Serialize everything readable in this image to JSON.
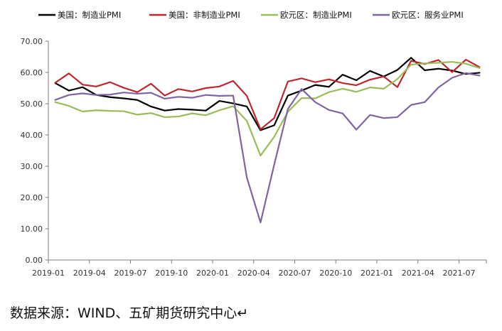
{
  "source_note": "数据来源：WIND、五矿期货研究中心↵",
  "chart_data": {
    "type": "line",
    "title": "",
    "xlabel": "",
    "ylabel": "",
    "ylim": [
      0,
      70
    ],
    "y_ticks": [
      "0.00",
      "10.00",
      "20.00",
      "30.00",
      "40.00",
      "50.00",
      "60.00",
      "70.00"
    ],
    "x_tick_labels": [
      "2019-01",
      "2019-04",
      "2019-07",
      "2019-10",
      "2020-01",
      "2020-04",
      "2020-07",
      "2020-10",
      "2021-01",
      "2021-04",
      "2021-07"
    ],
    "x": [
      "2019-01",
      "2019-02",
      "2019-03",
      "2019-04",
      "2019-05",
      "2019-06",
      "2019-07",
      "2019-08",
      "2019-09",
      "2019-10",
      "2019-11",
      "2019-12",
      "2020-01",
      "2020-02",
      "2020-03",
      "2020-04",
      "2020-05",
      "2020-06",
      "2020-07",
      "2020-08",
      "2020-09",
      "2020-10",
      "2020-11",
      "2020-12",
      "2021-01",
      "2021-02",
      "2021-03",
      "2021-04",
      "2021-05",
      "2021-06",
      "2021-07",
      "2021-08"
    ],
    "grid": false,
    "legend_position": "top",
    "series": [
      {
        "name": "美国：制造业PMI",
        "color": "#000000",
        "values": [
          56.6,
          54.2,
          55.3,
          52.8,
          52.1,
          51.7,
          51.2,
          49.1,
          47.8,
          48.3,
          48.1,
          47.8,
          50.9,
          50.1,
          49.1,
          41.5,
          43.1,
          52.6,
          54.2,
          56.0,
          55.4,
          59.3,
          57.5,
          60.5,
          58.7,
          60.8,
          64.7,
          60.7,
          61.2,
          60.6,
          59.5,
          59.9
        ]
      },
      {
        "name": "美国：非制造业PMI",
        "color": "#c0272d",
        "values": [
          56.7,
          59.7,
          56.1,
          55.5,
          56.9,
          55.1,
          53.7,
          56.4,
          52.6,
          54.7,
          53.9,
          55.0,
          55.5,
          57.3,
          52.5,
          41.8,
          45.4,
          57.1,
          58.1,
          56.9,
          57.8,
          56.6,
          55.9,
          57.7,
          58.7,
          55.3,
          63.7,
          62.7,
          64.0,
          60.1,
          64.1,
          61.7
        ]
      },
      {
        "name": "欧元区：制造业PMI",
        "color": "#9bbb59",
        "values": [
          50.5,
          49.3,
          47.5,
          47.9,
          47.7,
          47.6,
          46.5,
          47.0,
          45.7,
          45.9,
          46.9,
          46.3,
          47.9,
          49.2,
          44.5,
          33.4,
          39.4,
          47.4,
          51.8,
          51.7,
          53.7,
          54.8,
          53.8,
          55.2,
          54.8,
          57.9,
          62.5,
          62.9,
          63.1,
          63.4,
          62.8,
          61.4
        ]
      },
      {
        "name": "欧元区：服务业PMI",
        "color": "#8064a2",
        "values": [
          51.2,
          52.8,
          53.3,
          52.8,
          52.9,
          53.6,
          53.2,
          53.5,
          51.6,
          52.2,
          51.9,
          52.8,
          52.5,
          52.6,
          26.4,
          12.0,
          30.5,
          48.3,
          54.7,
          50.5,
          48.0,
          46.9,
          41.7,
          46.4,
          45.4,
          45.7,
          49.6,
          50.5,
          55.2,
          58.3,
          59.8,
          59.0
        ]
      }
    ]
  }
}
